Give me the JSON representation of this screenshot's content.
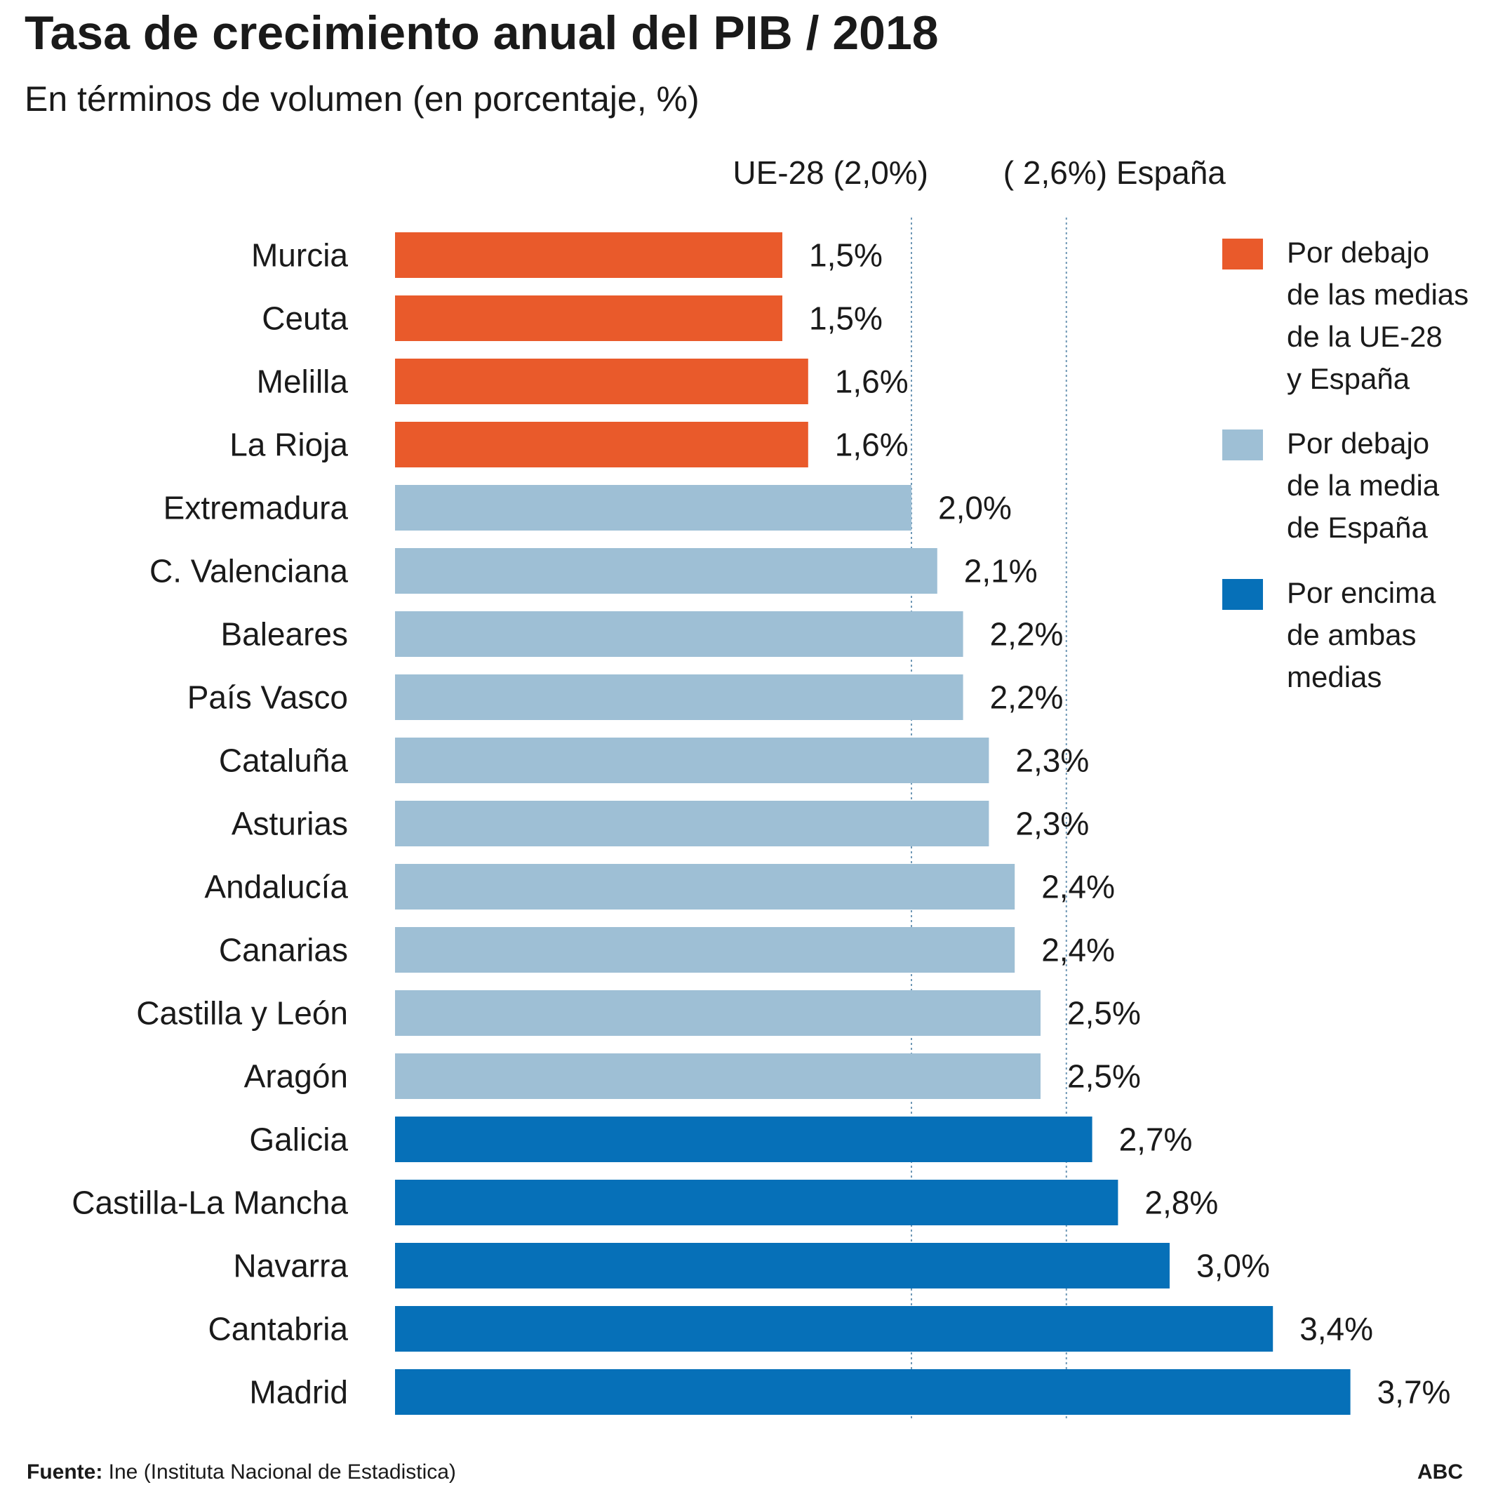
{
  "header": {
    "title": "Tasa de crecimiento anual del PIB / 2018",
    "subtitle": "En términos de volumen (en porcentaje, %)"
  },
  "chart_data": {
    "type": "bar",
    "orientation": "horizontal",
    "title": "Tasa de crecimiento anual del PIB / 2018",
    "subtitle": "En términos de volumen (en porcentaje, %)",
    "categories": [
      "Murcia",
      "Ceuta",
      "Melilla",
      "La Rioja",
      "Extremadura",
      "C. Valenciana",
      "Baleares",
      "País Vasco",
      "Cataluña",
      "Asturias",
      "Andalucía",
      "Canarias",
      "Castilla y León",
      "Aragón",
      "Galicia",
      "Castilla-La Mancha",
      "Navarra",
      "Cantabria",
      "Madrid"
    ],
    "values": [
      1.5,
      1.5,
      1.6,
      1.6,
      2.0,
      2.1,
      2.2,
      2.2,
      2.3,
      2.3,
      2.4,
      2.4,
      2.5,
      2.5,
      2.7,
      2.8,
      3.0,
      3.4,
      3.7
    ],
    "value_labels": [
      "1,5%",
      "1,5%",
      "1,6%",
      "1,6%",
      "2,0%",
      "2,1%",
      "2,2%",
      "2,2%",
      "2,3%",
      "2,3%",
      "2,4%",
      "2,4%",
      "2,5%",
      "2,5%",
      "2,7%",
      "2,8%",
      "3,0%",
      "3,4%",
      "3,7%"
    ],
    "groups": [
      "below_both",
      "below_both",
      "below_both",
      "below_both",
      "below_spain",
      "below_spain",
      "below_spain",
      "below_spain",
      "below_spain",
      "below_spain",
      "below_spain",
      "below_spain",
      "below_spain",
      "below_spain",
      "above_both",
      "above_both",
      "above_both",
      "above_both",
      "above_both"
    ],
    "xlim": [
      0,
      3.7
    ],
    "reference_lines": [
      {
        "value": 2.0,
        "label": "UE-28 (2,0%)"
      },
      {
        "value": 2.6,
        "label": "( 2,6%) España"
      }
    ],
    "legend": {
      "placement": "right",
      "entries": [
        {
          "key": "below_both",
          "label": "Por debajo de las medias de la UE-28 y España",
          "lines": [
            "Por debajo",
            "de las medias",
            "de la UE-28",
            "y España"
          ],
          "color": "#e95a2b"
        },
        {
          "key": "below_spain",
          "label": "Por debajo de la media de España",
          "lines": [
            "Por debajo",
            "de la media",
            "de España"
          ],
          "color": "#9ebfd5"
        },
        {
          "key": "above_both",
          "label": "Por encima de ambas medias",
          "lines": [
            "Por encima",
            "de ambas",
            "medias"
          ],
          "color": "#0670b8"
        }
      ]
    }
  },
  "footer": {
    "source_label": "Fuente:",
    "source_text": " Ine (Instituta Nacional de Estadistica)",
    "brand": "ABC"
  }
}
